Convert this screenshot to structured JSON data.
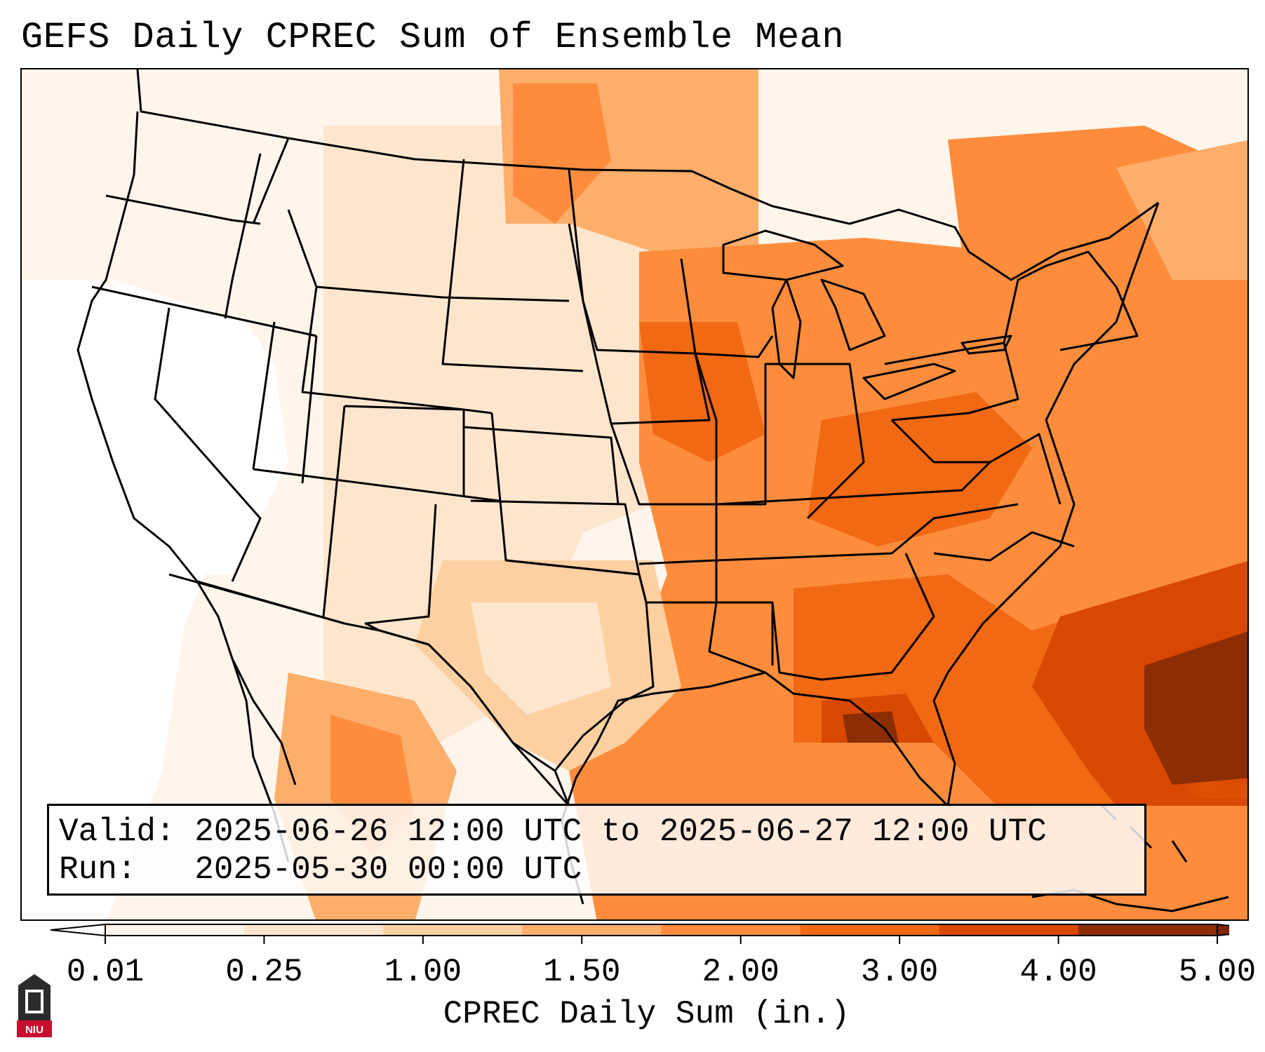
{
  "title": "GEFS Daily CPREC Sum of Ensemble Mean",
  "info": {
    "valid_label": "Valid:",
    "valid_value": "2025-06-26 12:00 UTC to 2025-06-27 12:00 UTC",
    "run_label": "Run:",
    "run_value": "2025-05-30 00:00 UTC"
  },
  "colorbar": {
    "label": "CPREC Daily Sum (in.)",
    "ticks": [
      "0.01",
      "0.25",
      "1.00",
      "1.50",
      "2.00",
      "3.00",
      "4.00",
      "5.00"
    ],
    "colors": [
      "#fff5eb",
      "#fee6ce",
      "#fdd0a2",
      "#fdae6b",
      "#fd8d3c",
      "#f16913",
      "#d94801",
      "#8c2d04"
    ],
    "under_color": "#ffffff",
    "over_color": "#7f2704"
  },
  "logo": {
    "text": "NIU",
    "icon": "niu-tower-logo-icon"
  },
  "map": {
    "region": "Contiguous United States",
    "features": [
      "state-boundaries",
      "country-boundaries",
      "coastlines"
    ]
  }
}
